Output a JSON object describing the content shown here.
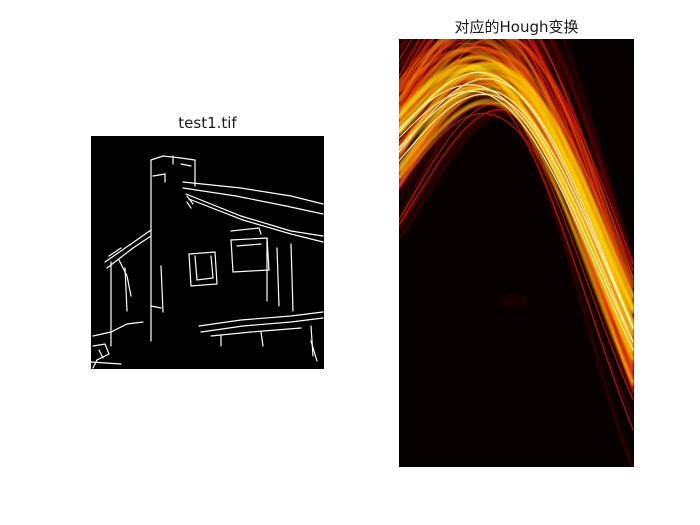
{
  "figure": {
    "panels": [
      {
        "title": "test1.tif",
        "content": "binary edge map of a house photograph (white edges on black)"
      },
      {
        "title": "对应的Hough变换",
        "content": "Hough transform accumulator shown with hot colormap"
      }
    ]
  },
  "colors": {
    "background": "#ffffff",
    "edge_bg": "#000000",
    "edge_fg": "#ffffff",
    "hough_bg": "#070000",
    "hough_dark_red": "#8b0000",
    "hough_red": "#e01a00",
    "hough_orange": "#ff8a00",
    "hough_yellow": "#ffe000",
    "hough_white": "#fffbd0"
  }
}
